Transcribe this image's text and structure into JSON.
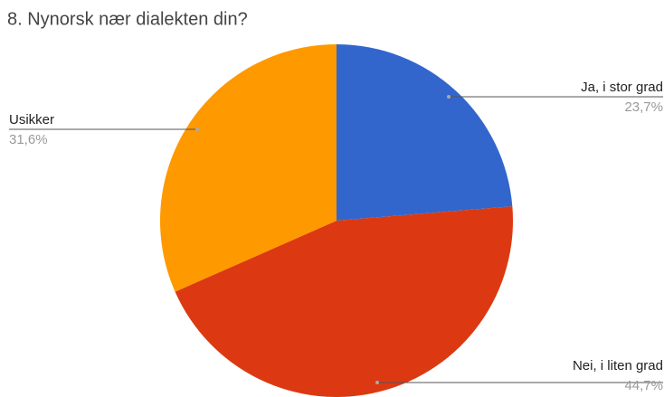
{
  "chart_data": {
    "type": "pie",
    "title": "8. Nynorsk nær dialekten din?",
    "categories": [
      "Ja, i stor grad",
      "Nei, i liten grad",
      "Usikker"
    ],
    "values": [
      23.7,
      44.7,
      31.6
    ],
    "value_labels": [
      "23,7%",
      "44,7%",
      "31,6%"
    ],
    "colors": [
      "#3366cc",
      "#dc3912",
      "#ff9900"
    ]
  }
}
